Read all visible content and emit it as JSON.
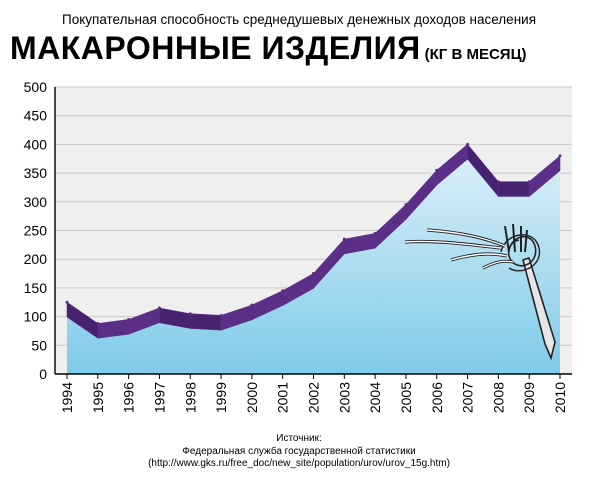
{
  "header": {
    "subtitle": "Покупательная способность среднедушевых денежных доходов населения",
    "title": "МАКАРОННЫЕ ИЗДЕЛИЯ",
    "unit": "(КГ В МЕСЯЦ)"
  },
  "source": {
    "label": "Источник:",
    "org": "Федеральная служба государственной статистики",
    "url": "(http://www.gks.ru/free_doc/new_site/population/urov/urov_15g.htm)"
  },
  "colors": {
    "ribbon": "#5b2f88",
    "ribbon_side": "#47226f",
    "area_top": "#d9eef8",
    "area_bottom": "#7ecbe9",
    "grid": "#c8c8c8",
    "plot_bg": "#efefef"
  },
  "icons": [
    "fork-with-pasta-icon"
  ],
  "chart_data": {
    "type": "area",
    "title": "МАКАРОННЫЕ ИЗДЕЛИЯ",
    "xlabel": "",
    "ylabel": "",
    "ylim": [
      0,
      500
    ],
    "y_ticks": [
      0,
      50,
      100,
      150,
      200,
      250,
      300,
      350,
      400,
      450,
      500
    ],
    "grid": true,
    "categories": [
      "1994",
      "1995",
      "1996",
      "1997",
      "1998",
      "1999",
      "2000",
      "2001",
      "2002",
      "2003",
      "2004",
      "2005",
      "2006",
      "2007",
      "2008",
      "2009",
      "2010"
    ],
    "values": [
      125,
      88,
      95,
      115,
      105,
      102,
      120,
      145,
      175,
      235,
      245,
      295,
      355,
      400,
      335,
      335,
      380
    ]
  }
}
